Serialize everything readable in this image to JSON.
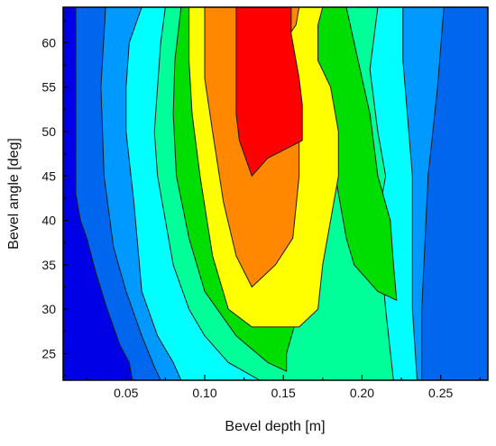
{
  "chart_data": {
    "type": "contour",
    "xlabel": "Bevel depth [m]",
    "ylabel": "Bevel angle [deg]",
    "xlim": [
      0.01,
      0.28
    ],
    "ylim": [
      22,
      64
    ],
    "xticks": [
      0.05,
      0.1,
      0.15,
      0.2,
      0.25
    ],
    "xtick_labels": [
      "0.05",
      "0.10",
      "0.15",
      "0.20",
      "0.25"
    ],
    "yticks": [
      25,
      30,
      35,
      40,
      45,
      50,
      55,
      60
    ],
    "ytick_labels": [
      "25",
      "30",
      "35",
      "40",
      "45",
      "50",
      "55",
      "60"
    ],
    "grid": false,
    "legend": "none",
    "level_colors": [
      "#0000e6",
      "#0066ee",
      "#0099ff",
      "#00ffff",
      "#00ff99",
      "#00dd00",
      "#ffff00",
      "#ff8800",
      "#ff0000"
    ],
    "bands": [
      {
        "level": 1,
        "color": "#0066ee",
        "points": [
          [
            0.018,
            64
          ],
          [
            0.28,
            64
          ],
          [
            0.28,
            22
          ],
          [
            0.054,
            22
          ],
          [
            0.052,
            24
          ],
          [
            0.046,
            26
          ],
          [
            0.038,
            30
          ],
          [
            0.031,
            34
          ],
          [
            0.025,
            38
          ],
          [
            0.021,
            40
          ],
          [
            0.018,
            43
          ]
        ]
      },
      {
        "level": 2,
        "color": "#0099ff",
        "points": [
          [
            0.037,
            64
          ],
          [
            0.252,
            64
          ],
          [
            0.248,
            55
          ],
          [
            0.242,
            45
          ],
          [
            0.238,
            30
          ],
          [
            0.238,
            22
          ],
          [
            0.072,
            22
          ],
          [
            0.068,
            23.5
          ],
          [
            0.06,
            27
          ],
          [
            0.05,
            32
          ],
          [
            0.042,
            37
          ],
          [
            0.036,
            45
          ],
          [
            0.034,
            55
          ]
        ]
      },
      {
        "level": 3,
        "color": "#00ffff",
        "points": [
          [
            0.06,
            64
          ],
          [
            0.226,
            64
          ],
          [
            0.226,
            58
          ],
          [
            0.232,
            45
          ],
          [
            0.232,
            30
          ],
          [
            0.235,
            22
          ],
          [
            0.085,
            22
          ],
          [
            0.08,
            24
          ],
          [
            0.07,
            27
          ],
          [
            0.06,
            32
          ],
          [
            0.055,
            42
          ],
          [
            0.05,
            50
          ],
          [
            0.05,
            55
          ],
          [
            0.052,
            60
          ]
        ]
      },
      {
        "level": 4,
        "color": "#00ff99",
        "points": [
          [
            0.075,
            64
          ],
          [
            0.21,
            64
          ],
          [
            0.205,
            57
          ],
          [
            0.21,
            50
          ],
          [
            0.215,
            45
          ],
          [
            0.21,
            40
          ],
          [
            0.215,
            30
          ],
          [
            0.22,
            22
          ],
          [
            0.135,
            22
          ],
          [
            0.115,
            24
          ],
          [
            0.1,
            27
          ],
          [
            0.09,
            30
          ],
          [
            0.08,
            35
          ],
          [
            0.075,
            40
          ],
          [
            0.07,
            45
          ],
          [
            0.068,
            50
          ],
          [
            0.07,
            55
          ],
          [
            0.072,
            60
          ]
        ]
      },
      {
        "level": 5,
        "color": "#00dd00",
        "points": [
          [
            0.085,
            64
          ],
          [
            0.19,
            64
          ],
          [
            0.195,
            60
          ],
          [
            0.205,
            52
          ],
          [
            0.21,
            45
          ],
          [
            0.218,
            40
          ],
          [
            0.22,
            35
          ],
          [
            0.222,
            31
          ],
          [
            0.21,
            32
          ],
          [
            0.195,
            35
          ],
          [
            0.19,
            38
          ],
          [
            0.18,
            48
          ],
          [
            0.175,
            45
          ],
          [
            0.165,
            40
          ],
          [
            0.165,
            35
          ],
          [
            0.16,
            30
          ],
          [
            0.152,
            25
          ],
          [
            0.152,
            23
          ],
          [
            0.14,
            24
          ],
          [
            0.12,
            27
          ],
          [
            0.1,
            32
          ],
          [
            0.09,
            38
          ],
          [
            0.082,
            45
          ],
          [
            0.08,
            52
          ],
          [
            0.081,
            58
          ]
        ]
      },
      {
        "level": 6,
        "color": "#ffff00",
        "points": [
          [
            0.09,
            64
          ],
          [
            0.175,
            64
          ],
          [
            0.172,
            62
          ],
          [
            0.172,
            58
          ],
          [
            0.18,
            55
          ],
          [
            0.185,
            50
          ],
          [
            0.185,
            45
          ],
          [
            0.18,
            40
          ],
          [
            0.175,
            35
          ],
          [
            0.172,
            30
          ],
          [
            0.16,
            28
          ],
          [
            0.13,
            28
          ],
          [
            0.115,
            30
          ],
          [
            0.105,
            36
          ],
          [
            0.097,
            45
          ],
          [
            0.092,
            52
          ],
          [
            0.09,
            58
          ]
        ]
      },
      {
        "level": 7,
        "color": "#ff8800",
        "points": [
          [
            0.1,
            64
          ],
          [
            0.16,
            64
          ],
          [
            0.158,
            62
          ],
          [
            0.15,
            60
          ],
          [
            0.15,
            55
          ],
          [
            0.16,
            50
          ],
          [
            0.16,
            45
          ],
          [
            0.156,
            38
          ],
          [
            0.145,
            35
          ],
          [
            0.13,
            32.5
          ],
          [
            0.12,
            36
          ],
          [
            0.112,
            42
          ],
          [
            0.105,
            50
          ],
          [
            0.1,
            56
          ]
        ]
      },
      {
        "level": 8,
        "color": "#ff0000",
        "points": [
          [
            0.12,
            64
          ],
          [
            0.155,
            64
          ],
          [
            0.155,
            61
          ],
          [
            0.16,
            56
          ],
          [
            0.162,
            53
          ],
          [
            0.162,
            49
          ],
          [
            0.14,
            47
          ],
          [
            0.13,
            45
          ],
          [
            0.122,
            49
          ],
          [
            0.12,
            52
          ],
          [
            0.12,
            60
          ]
        ]
      }
    ]
  }
}
